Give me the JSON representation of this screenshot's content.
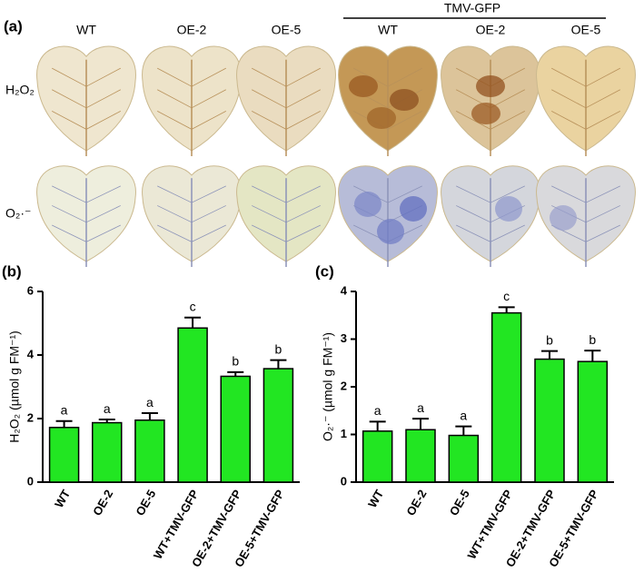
{
  "panel_a": {
    "label": "(a)",
    "group_label": "TMV-GFP",
    "columns": [
      "WT",
      "OE-2",
      "OE-5",
      "WT",
      "OE-2",
      "OE-5"
    ],
    "rows": [
      "H₂O₂",
      "O₂·⁻"
    ]
  },
  "chart_data": [
    {
      "type": "bar",
      "panel": "(b)",
      "ylabel": "H₂O₂ (µmol g FM⁻¹)",
      "categories": [
        "WT",
        "OE-2",
        "OE-5",
        "WT+TMV-GFP",
        "OE-2+TMV-GFP",
        "OE-5+TMV-GFP"
      ],
      "values": [
        1.72,
        1.87,
        1.95,
        4.85,
        3.33,
        3.57
      ],
      "errors": [
        0.2,
        0.1,
        0.22,
        0.33,
        0.13,
        0.27
      ],
      "annotations": [
        "a",
        "a",
        "a",
        "c",
        "b",
        "b"
      ],
      "color": "#22e622",
      "ylim": [
        0,
        6
      ],
      "yticks": [
        0,
        2,
        4,
        6
      ]
    },
    {
      "type": "bar",
      "panel": "(c)",
      "ylabel": "O₂·⁻ (µmol g FM⁻¹)",
      "categories": [
        "WT",
        "OE-2",
        "OE-5",
        "WT+TMV-GFP",
        "OE-2+TMV-GFP",
        "OE-5+TMV-GFP"
      ],
      "values": [
        1.07,
        1.1,
        0.98,
        3.55,
        2.58,
        2.53
      ],
      "errors": [
        0.2,
        0.23,
        0.19,
        0.12,
        0.17,
        0.23
      ],
      "annotations": [
        "a",
        "a",
        "a",
        "c",
        "b",
        "b"
      ],
      "color": "#22e622",
      "ylim": [
        0,
        4
      ],
      "yticks": [
        0,
        1,
        2,
        3,
        4
      ]
    }
  ]
}
